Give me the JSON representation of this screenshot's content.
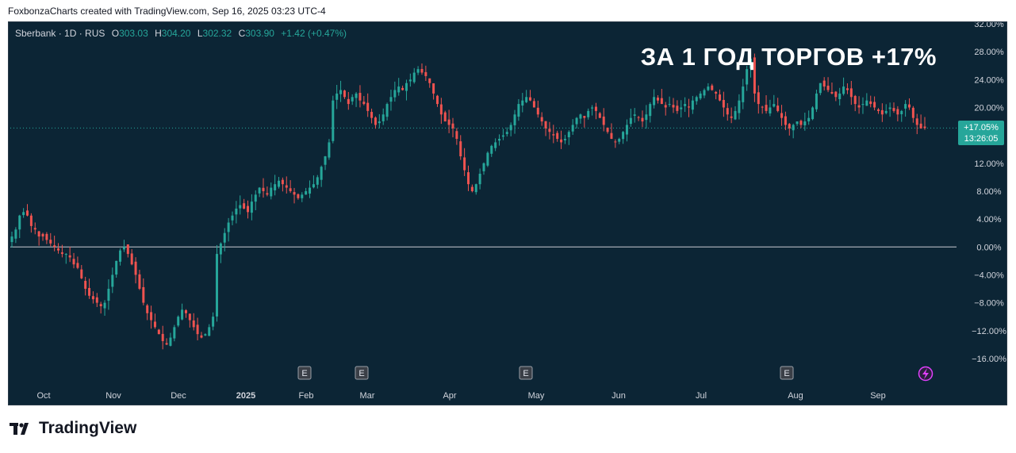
{
  "caption": "FoxbonzaCharts created with TradingView.com, Sep 16, 2025 03:23 UTC-4",
  "legend": {
    "symbol": "Sberbank · 1D · RUS",
    "open_label": "O",
    "open": "303.03",
    "high_label": "H",
    "high": "304.20",
    "low_label": "L",
    "low": "302.32",
    "close_label": "C",
    "close": "303.90",
    "change": "+1.42 (+0.47%)"
  },
  "headline": "ЗА 1 ГОД ТОРГОВ +17%",
  "last_value": {
    "percent": "+17.05%",
    "countdown": "13:26:05"
  },
  "brand": {
    "name": "TradingView",
    "logo_icon": "tradingview-logo-icon"
  },
  "colors": {
    "background": "#0c2535",
    "up": "#26a69a",
    "down": "#ef5350",
    "text": "#d1d4dc",
    "flash": "#e040fb"
  },
  "chart_data": {
    "type": "candlestick",
    "y_unit": "%",
    "ylim": [
      -18,
      32
    ],
    "y_ticks": [
      "32.00%",
      "28.00%",
      "24.00%",
      "20.00%",
      "12.00%",
      "8.00%",
      "4.00%",
      "0.00%",
      "−4.00%",
      "−8.00%",
      "−12.00%",
      "−16.00%"
    ],
    "x_ticks": [
      "Oct",
      "Nov",
      "Dec",
      "2025",
      "Feb",
      "Mar",
      "Apr",
      "May",
      "Jun",
      "Jul",
      "Aug",
      "Sep"
    ],
    "baseline": 0,
    "last_value": 17.05,
    "earnings_markers": [
      {
        "label": "E",
        "month": "Jan"
      },
      {
        "label": "E",
        "month": "Feb"
      },
      {
        "label": "E",
        "month": "Apr"
      },
      {
        "label": "E",
        "month": "Jul"
      }
    ],
    "flash_marker": "lightning-icon",
    "series": [
      {
        "values": [
          1.5,
          2.5,
          4.5,
          5.0,
          4.5,
          3.0,
          2.5,
          1.5,
          1.5,
          1.0,
          0.5,
          0.0,
          -0.5,
          -1.0,
          -1.0,
          -1.5,
          -2.5,
          -3.0,
          -4.5,
          -6.0,
          -7.0,
          -7.5,
          -8.0,
          -8.5,
          -8.0,
          -6.0,
          -4.0,
          -2.0,
          -0.5,
          0.0,
          -1.0,
          -2.5,
          -4.0,
          -6.0,
          -8.0,
          -9.5,
          -10.5,
          -11.5,
          -12.5,
          -13.5,
          -14.0,
          -13.0,
          -11.5,
          -10.0,
          -9.0,
          -9.5,
          -10.5,
          -11.5,
          -12.5,
          -13.0,
          -12.5,
          -11.5,
          -10.0,
          -1.0,
          0.5,
          2.0,
          3.5,
          4.5,
          5.5,
          6.0,
          5.5,
          5.0,
          6.5,
          7.5,
          8.5,
          8.0,
          7.5,
          8.5,
          9.0,
          9.5,
          9.0,
          8.5,
          8.0,
          7.5,
          7.0,
          7.5,
          8.0,
          8.5,
          9.0,
          10.0,
          11.5,
          13.0,
          15.0,
          21.0,
          22.0,
          22.5,
          21.5,
          20.5,
          21.5,
          22.0,
          21.0,
          20.5,
          19.5,
          18.5,
          17.5,
          18.0,
          19.0,
          20.5,
          21.5,
          22.5,
          23.0,
          22.5,
          23.5,
          24.0,
          25.0,
          25.5,
          25.0,
          24.5,
          23.5,
          22.0,
          20.5,
          19.0,
          18.0,
          17.5,
          17.0,
          15.5,
          13.0,
          11.0,
          9.0,
          8.0,
          9.0,
          10.5,
          12.0,
          13.5,
          14.5,
          15.0,
          15.5,
          16.0,
          16.5,
          17.5,
          19.0,
          20.5,
          21.0,
          21.5,
          21.0,
          20.0,
          19.0,
          18.0,
          17.0,
          16.5,
          16.0,
          15.5,
          15.0,
          15.5,
          16.5,
          17.5,
          18.5,
          19.0,
          18.5,
          19.5,
          20.0,
          19.5,
          18.5,
          17.5,
          16.5,
          15.5,
          15.0,
          15.5,
          16.5,
          17.5,
          18.5,
          19.0,
          18.5,
          18.0,
          19.0,
          20.5,
          21.5,
          21.0,
          20.5,
          20.0,
          20.5,
          20.0,
          19.5,
          20.0,
          20.5,
          20.0,
          21.0,
          21.5,
          22.0,
          22.5,
          23.0,
          22.5,
          22.0,
          21.0,
          20.0,
          19.0,
          18.5,
          19.5,
          21.0,
          23.0,
          25.5,
          27.0,
          22.0,
          20.5,
          20.0,
          19.5,
          20.0,
          20.5,
          19.5,
          18.5,
          17.5,
          17.0,
          17.5,
          18.0,
          17.5,
          18.0,
          18.5,
          20.0,
          22.0,
          23.5,
          23.0,
          22.5,
          22.0,
          21.5,
          22.0,
          23.0,
          22.5,
          21.5,
          20.5,
          20.0,
          20.5,
          21.0,
          20.5,
          20.0,
          19.5,
          19.0,
          19.5,
          20.0,
          19.5,
          19.0,
          19.5,
          20.5,
          20.0,
          18.5,
          17.5,
          17.0,
          17.05
        ]
      }
    ]
  }
}
